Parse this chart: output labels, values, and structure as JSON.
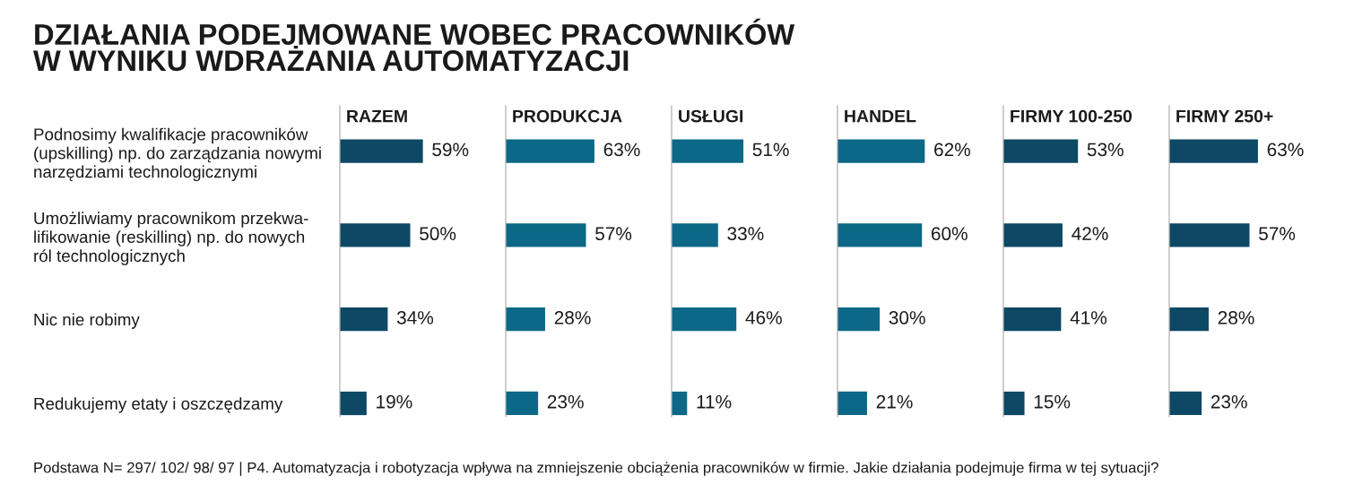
{
  "chart_data": [
    {
      "type": "other",
      "title": "DZIAŁANIA PODEJMOWANE WOBEC PRACOWNIKÓW\nW WYNIKU WDRAŻANIA AUTOMATYZACJI",
      "annotations": [
        "Podstawa N= 297/ 102/ 98/ 97 | P4. Automatyzacja i robotyzacja wpływa na zmniejszenie obciążenia pracowników w firmie. Jakie działania podejmuje firma w tej sytuacji?"
      ]
    },
    {
      "type": "bar",
      "orientation": "horizontal",
      "title": "RAZEM",
      "categories": [
        "Podnosimy kwalifikacje pracowników\n(upskilling) np. do zarządzania nowymi\nnarzędziami technologicznymi",
        "Umożliwiamy pracownikom przekwa-\nlifikowanie (reskilling) np. do nowych\nról technologicznych",
        "Nic nie robimy",
        "Redukujemy etaty i oszczędzamy"
      ],
      "values": [
        59,
        50,
        34,
        19
      ],
      "value_labels": [
        "59%",
        "50%",
        "34%",
        "19%"
      ],
      "color": "#0d4864",
      "tick_labels": "y"
    },
    {
      "type": "bar",
      "orientation": "horizontal",
      "title": "PRODUKCJA",
      "values": [
        63,
        57,
        28,
        23
      ],
      "value_labels": [
        "63%",
        "57%",
        "28%",
        "23%"
      ],
      "color": "#0c6886"
    },
    {
      "type": "bar",
      "orientation": "horizontal",
      "title": "USŁUGI",
      "values": [
        51,
        33,
        46,
        11
      ],
      "value_labels": [
        "51%",
        "33%",
        "46%",
        "11%"
      ],
      "color": "#0c6886"
    },
    {
      "type": "bar",
      "orientation": "horizontal",
      "title": "HANDEL",
      "values": [
        62,
        60,
        30,
        21
      ],
      "value_labels": [
        "62%",
        "60%",
        "30%",
        "21%"
      ],
      "color": "#0c6886"
    },
    {
      "type": "bar",
      "orientation": "horizontal",
      "title": "FIRMY 100-250",
      "values": [
        53,
        42,
        41,
        15
      ],
      "value_labels": [
        "53%",
        "42%",
        "41%",
        "15%"
      ],
      "color": "#0d4864"
    },
    {
      "type": "bar",
      "orientation": "horizontal",
      "title": "FIRMY 250+",
      "values": [
        63,
        57,
        28,
        23
      ],
      "value_labels": [
        "63%",
        "57%",
        "28%",
        "23%"
      ],
      "color": "#0d4864"
    }
  ]
}
